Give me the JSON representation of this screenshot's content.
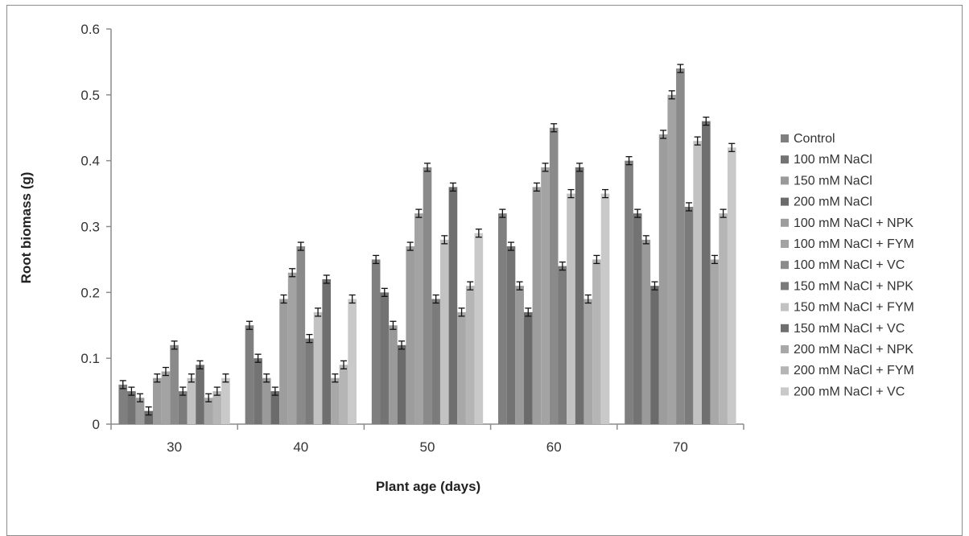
{
  "chart_data": {
    "type": "bar",
    "title": "",
    "xlabel": "Plant age (days)",
    "ylabel": "Root biomass (g)",
    "ylim": [
      0,
      0.6
    ],
    "yticks": [
      "0",
      "0.1",
      "0.2",
      "0.3",
      "0.4",
      "0.5",
      "0.6"
    ],
    "yticks_values": [
      0,
      0.1,
      0.2,
      0.3,
      0.4,
      0.5,
      0.6
    ],
    "categories": [
      "30",
      "40",
      "50",
      "60",
      "70"
    ],
    "error_bars": true,
    "grid": false,
    "legend_position": "right",
    "series": [
      {
        "name": "Control",
        "color": "#7f7f7f",
        "values": [
          0.06,
          0.15,
          0.25,
          0.32,
          0.4
        ]
      },
      {
        "name": "100 mM NaCl",
        "color": "#737373",
        "values": [
          0.05,
          0.1,
          0.2,
          0.27,
          0.32
        ]
      },
      {
        "name": "150 mM NaCl",
        "color": "#9a9a9a",
        "values": [
          0.04,
          0.07,
          0.15,
          0.21,
          0.28
        ]
      },
      {
        "name": "200 mM NaCl",
        "color": "#6b6b6b",
        "values": [
          0.02,
          0.05,
          0.12,
          0.17,
          0.21
        ]
      },
      {
        "name": "100 mM NaCl + NPK",
        "color": "#9d9d9d",
        "values": [
          0.07,
          0.19,
          0.27,
          0.36,
          0.44
        ]
      },
      {
        "name": "100 mM NaCl + FYM",
        "color": "#a3a3a3",
        "values": [
          0.08,
          0.23,
          0.32,
          0.39,
          0.5
        ]
      },
      {
        "name": "100 mM NaCl + VC",
        "color": "#8a8a8a",
        "values": [
          0.12,
          0.27,
          0.39,
          0.45,
          0.54
        ]
      },
      {
        "name": "150 mM NaCl + NPK",
        "color": "#7b7b7b",
        "values": [
          0.05,
          0.13,
          0.19,
          0.24,
          0.33
        ]
      },
      {
        "name": "150 mM NaCl + FYM",
        "color": "#c2c2c2",
        "values": [
          0.07,
          0.17,
          0.28,
          0.35,
          0.43
        ]
      },
      {
        "name": "150 mM NaCl + VC",
        "color": "#6f6f6f",
        "values": [
          0.09,
          0.22,
          0.36,
          0.39,
          0.46
        ]
      },
      {
        "name": "200 mM NaCl + NPK",
        "color": "#a8a8a8",
        "values": [
          0.04,
          0.07,
          0.17,
          0.19,
          0.25
        ]
      },
      {
        "name": "200 mM NaCl + FYM",
        "color": "#b5b5b5",
        "values": [
          0.05,
          0.09,
          0.21,
          0.25,
          0.32
        ]
      },
      {
        "name": "200 mM NaCl + VC",
        "color": "#c9c9c9",
        "values": [
          0.07,
          0.19,
          0.29,
          0.35,
          0.42
        ]
      }
    ]
  }
}
